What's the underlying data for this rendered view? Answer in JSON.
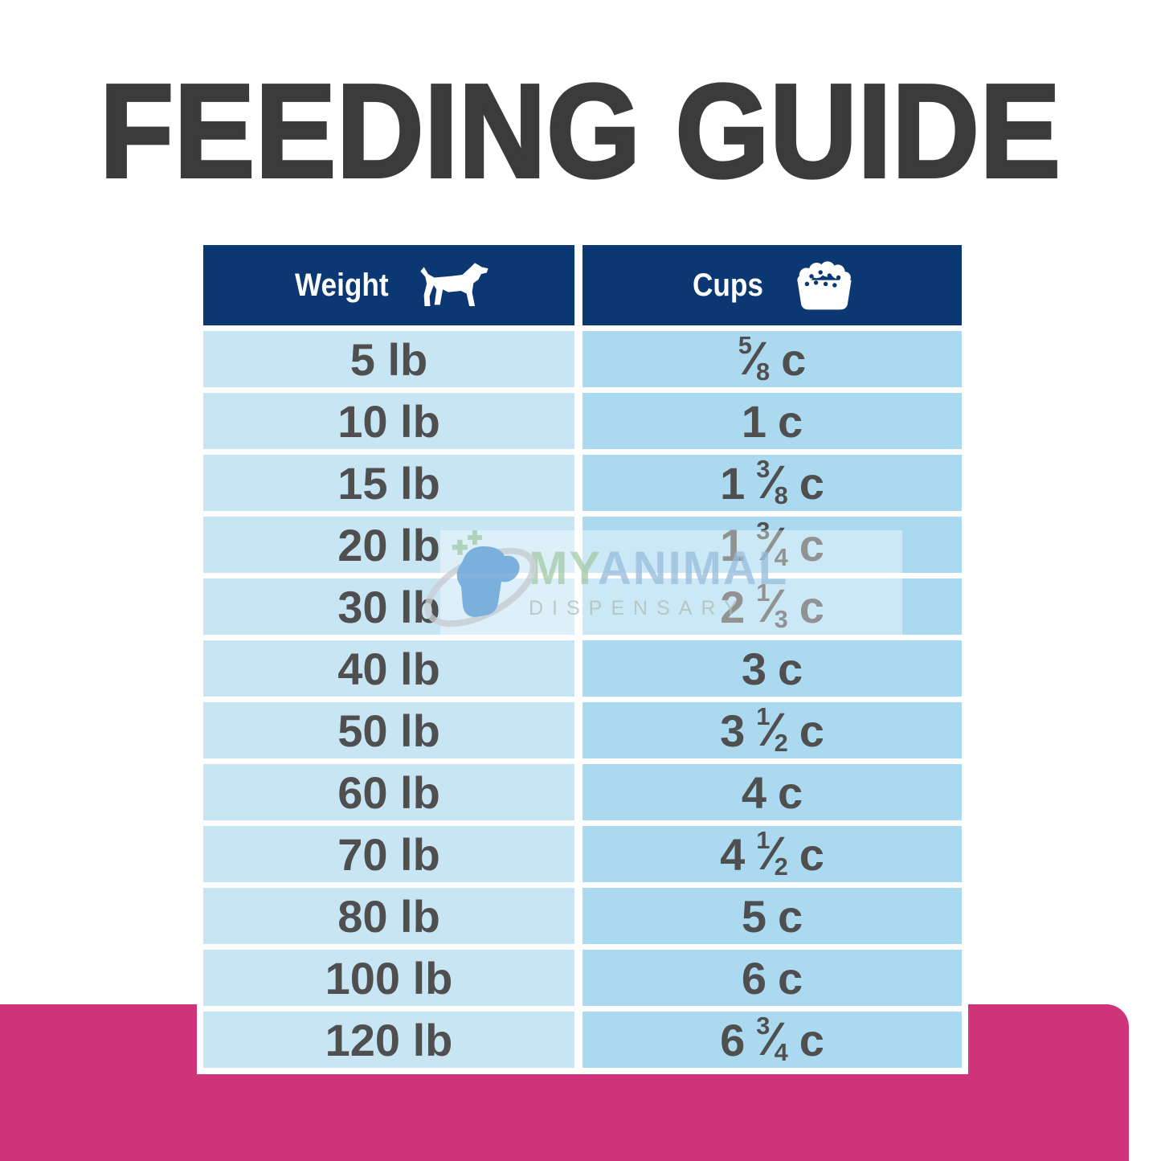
{
  "page": {
    "title": "FEEDING GUIDE"
  },
  "colors": {
    "title_text": "#3b3b3b",
    "header_navy": "#0b3873",
    "weight_column_blue": "#c8e5f4",
    "cups_column_blue": "#abdaf0",
    "cell_text": "#4f4f4f",
    "pink_band": "#cf3379"
  },
  "table": {
    "columns": [
      {
        "label": "Weight",
        "icon": "dog-icon"
      },
      {
        "label": "Cups",
        "icon": "food-bowl-icon"
      }
    ],
    "rows": [
      {
        "weight": "5 lb",
        "cups": {
          "whole": "",
          "num": "5",
          "den": "8",
          "unit": "c"
        }
      },
      {
        "weight": "10 lb",
        "cups": {
          "whole": "1",
          "num": "",
          "den": "",
          "unit": "c"
        }
      },
      {
        "weight": "15 lb",
        "cups": {
          "whole": "1",
          "num": "3",
          "den": "8",
          "unit": "c"
        }
      },
      {
        "weight": "20 lb",
        "cups": {
          "whole": "1",
          "num": "3",
          "den": "4",
          "unit": "c"
        }
      },
      {
        "weight": "30 lb",
        "cups": {
          "whole": "2",
          "num": "1",
          "den": "3",
          "unit": "c"
        }
      },
      {
        "weight": "40 lb",
        "cups": {
          "whole": "3",
          "num": "",
          "den": "",
          "unit": "c"
        }
      },
      {
        "weight": "50 lb",
        "cups": {
          "whole": "3",
          "num": "1",
          "den": "2",
          "unit": "c"
        }
      },
      {
        "weight": "60 lb",
        "cups": {
          "whole": "4",
          "num": "",
          "den": "",
          "unit": "c"
        }
      },
      {
        "weight": "70 lb",
        "cups": {
          "whole": "4",
          "num": "1",
          "den": "2",
          "unit": "c"
        }
      },
      {
        "weight": "80 lb",
        "cups": {
          "whole": "5",
          "num": "",
          "den": "",
          "unit": "c"
        }
      },
      {
        "weight": "100 lb",
        "cups": {
          "whole": "6",
          "num": "",
          "den": "",
          "unit": "c"
        }
      },
      {
        "weight": "120 lb",
        "cups": {
          "whole": "6",
          "num": "3",
          "den": "4",
          "unit": "c"
        }
      }
    ]
  },
  "watermark": {
    "brand_first": "MY",
    "brand_second": "ANIMAL",
    "subtitle": "DISPENSARY"
  }
}
